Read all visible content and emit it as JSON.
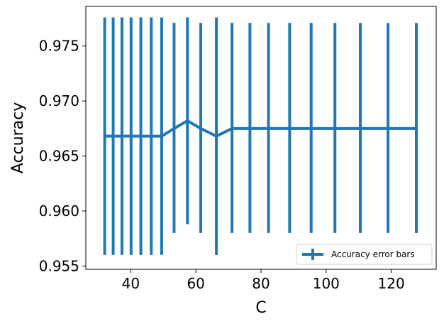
{
  "chart_data": {
    "type": "line",
    "title": "",
    "xlabel": "C",
    "ylabel": "Accuracy",
    "xlim": [
      26.2,
      133.8
    ],
    "ylim": [
      0.9547,
      0.9786
    ],
    "xticks": [
      40,
      60,
      80,
      100,
      120
    ],
    "xtick_labels": [
      "40",
      "60",
      "80",
      "100",
      "120"
    ],
    "yticks": [
      0.955,
      0.96,
      0.965,
      0.97,
      0.975
    ],
    "ytick_labels": [
      "0.955",
      "0.960",
      "0.965",
      "0.970",
      "0.975"
    ],
    "legend": {
      "position": "lower-right",
      "entries": [
        "Accuracy error bars"
      ]
    },
    "grid": false,
    "color": "#1f77b4",
    "series": [
      {
        "name": "Accuracy error bars",
        "x": [
          32,
          34.6,
          37.3,
          40.1,
          43.1,
          46.3,
          49.5,
          53.3,
          57.4,
          61.5,
          66.3,
          71.1,
          76.6,
          82.3,
          88.8,
          95.4,
          102.7,
          110.5,
          119,
          127.7
        ],
        "y": [
          0.9668,
          0.9668,
          0.9668,
          0.9668,
          0.9668,
          0.9668,
          0.9668,
          0.9675,
          0.9682,
          0.9675,
          0.9668,
          0.9675,
          0.9675,
          0.9675,
          0.9675,
          0.9675,
          0.9675,
          0.9675,
          0.9675,
          0.9675
        ],
        "err_low": [
          0.956,
          0.956,
          0.956,
          0.956,
          0.956,
          0.956,
          0.956,
          0.958,
          0.9588,
          0.958,
          0.956,
          0.958,
          0.958,
          0.958,
          0.958,
          0.958,
          0.958,
          0.958,
          0.958,
          0.958
        ],
        "err_high": [
          0.9776,
          0.9776,
          0.9776,
          0.9776,
          0.9776,
          0.9776,
          0.9776,
          0.9771,
          0.9776,
          0.9771,
          0.9776,
          0.9771,
          0.9771,
          0.9771,
          0.9771,
          0.9771,
          0.9771,
          0.9771,
          0.9771,
          0.9771
        ]
      }
    ]
  }
}
